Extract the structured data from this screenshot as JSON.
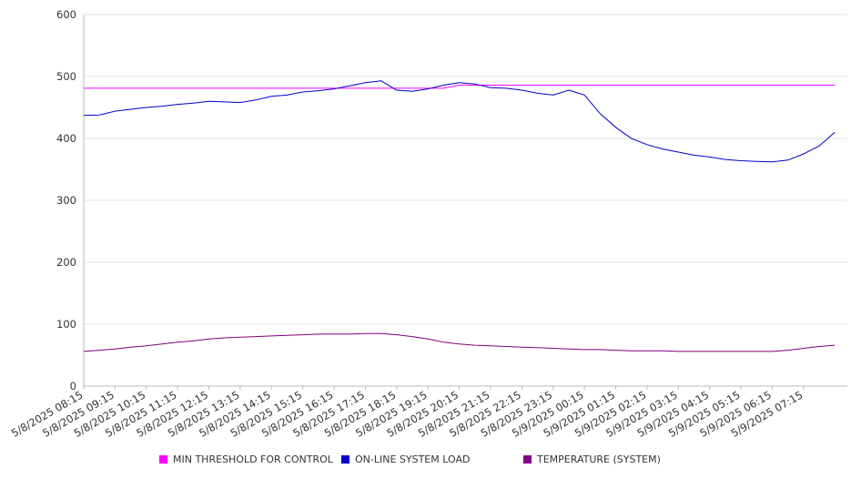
{
  "chart_data": {
    "type": "line",
    "ylim": [
      0,
      600
    ],
    "yticks": [
      0,
      100,
      200,
      300,
      400,
      500,
      600
    ],
    "x_tick_labels": [
      "5/8/2025 08:15",
      "5/8/2025 09:15",
      "5/8/2025 10:15",
      "5/8/2025 11:15",
      "5/8/2025 12:15",
      "5/8/2025 13:15",
      "5/8/2025 14:15",
      "5/8/2025 15:15",
      "5/8/2025 16:15",
      "5/8/2025 17:15",
      "5/8/2025 18:15",
      "5/8/2025 19:15",
      "5/8/2025 20:15",
      "5/8/2025 21:15",
      "5/8/2025 22:15",
      "5/8/2025 23:15",
      "5/9/2025 00:15",
      "5/9/2025 01:15",
      "5/9/2025 02:15",
      "5/9/2025 03:15",
      "5/9/2025 04:15",
      "5/9/2025 05:15",
      "5/9/2025 06:15",
      "5/9/2025 07:15"
    ],
    "x_hours": [
      0,
      0.5,
      1,
      1.5,
      2,
      2.5,
      3,
      3.5,
      4,
      4.5,
      5,
      5.5,
      6,
      6.5,
      7,
      7.5,
      8,
      8.5,
      9,
      9.5,
      10,
      10.5,
      11,
      11.5,
      12,
      12.5,
      13,
      13.5,
      14,
      14.5,
      15,
      15.5,
      16,
      16.5,
      17,
      17.5,
      18,
      18.5,
      19,
      19.5,
      20,
      20.5,
      21,
      21.5,
      22,
      22.5,
      23,
      23.5,
      24
    ],
    "x_range_hours": [
      0,
      24.4
    ],
    "grid": true,
    "legend_position": "bottom",
    "series": [
      {
        "name": "MIN THRESHOLD FOR CONTROL",
        "color": "#ff00ff",
        "values": [
          481,
          481,
          481,
          481,
          481,
          481,
          481,
          481,
          481,
          481,
          481,
          481,
          481,
          481,
          481,
          481,
          481,
          481,
          481,
          481,
          481,
          481,
          481,
          481,
          486,
          486,
          486,
          486,
          486,
          486,
          486,
          486,
          486,
          486,
          486,
          486,
          486,
          486,
          486,
          486,
          486,
          486,
          486,
          486,
          486,
          486,
          486,
          486,
          486
        ]
      },
      {
        "name": "ON-LINE SYSTEM LOAD",
        "color": "#0000cc",
        "values": [
          437,
          438,
          444,
          447,
          450,
          452,
          455,
          457,
          460,
          459,
          458,
          462,
          468,
          470,
          475,
          477,
          480,
          485,
          490,
          493,
          478,
          476,
          480,
          486,
          490,
          488,
          482,
          481,
          478,
          473,
          470,
          478,
          470,
          440,
          418,
          400,
          390,
          383,
          378,
          373,
          370,
          366,
          364,
          363,
          362,
          365,
          375,
          388,
          410
        ]
      },
      {
        "name": "TEMPERATURE (SYSTEM)",
        "color": "#800080",
        "values": [
          56,
          58,
          60,
          63,
          65,
          68,
          71,
          73,
          76,
          78,
          79,
          80,
          81,
          82,
          83,
          84,
          84,
          84,
          85,
          85,
          83,
          80,
          76,
          71,
          68,
          66,
          65,
          64,
          63,
          62,
          61,
          60,
          59,
          59,
          58,
          57,
          57,
          57,
          56,
          56,
          56,
          56,
          56,
          56,
          56,
          58,
          61,
          64,
          66
        ]
      }
    ]
  }
}
